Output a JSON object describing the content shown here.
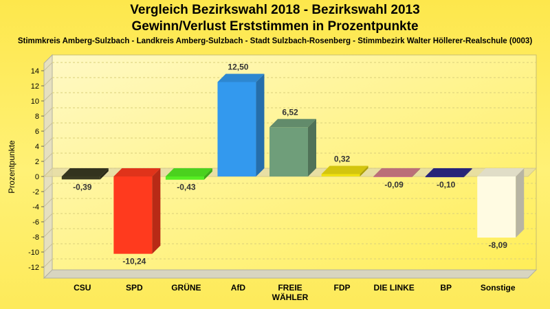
{
  "chart_data": {
    "type": "bar",
    "title": "Vergleich Bezirkswahl 2018 - Bezirkswahl 2013",
    "subtitle": "Gewinn/Verlust Erststimmen in Prozentpunkte",
    "subtitle2": "Stimmkreis Amberg-Sulzbach - Landkreis Amberg-Sulzbach - Stadt Sulzbach-Rosenberg - Stimmbezirk Walter Höllerer-Realschule (0003)",
    "ylabel": "Prozentpunkte",
    "xlabel": "",
    "ylim": [
      -12,
      14
    ],
    "yticks": [
      14,
      12,
      10,
      8,
      6,
      4,
      2,
      0,
      -2,
      -4,
      -6,
      -8,
      -10,
      -12
    ],
    "grid": true,
    "categories": [
      "CSU",
      "SPD",
      "GRÜNE",
      "AfD",
      "FREIE\nWÄHLER",
      "FDP",
      "DIE LINKE",
      "BP",
      "Sonstige"
    ],
    "values": [
      -0.39,
      -10.24,
      -0.43,
      12.5,
      6.52,
      0.32,
      -0.09,
      -0.1,
      -8.09
    ],
    "labels": [
      "-0,39",
      "-10,24",
      "-0,43",
      "12,50",
      "6,52",
      "0,32",
      "-0,09",
      "-0,10",
      "-8,09"
    ],
    "colors": [
      "#3a3a22",
      "#ff3a1e",
      "#55ee22",
      "#3399ee",
      "#6f9e7a",
      "#f0e010",
      "#d47e88",
      "#2c2a88",
      "#fffbe2"
    ]
  }
}
